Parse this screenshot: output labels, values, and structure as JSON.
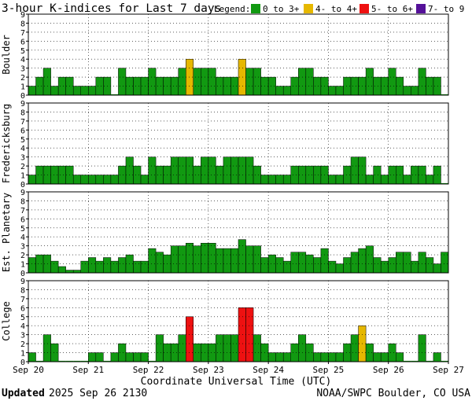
{
  "chart_data": {
    "type": "bar",
    "title": "3-hour K-indices for Last 7 days",
    "legend": {
      "label": "Legend:",
      "placement": "top-right",
      "items": [
        {
          "label": "0 to 3+",
          "color": "#119911"
        },
        {
          "label": "4- to 4+",
          "color": "#e6b800"
        },
        {
          "label": "5- to 6+",
          "color": "#ee1111"
        },
        {
          "label": "7- to 9",
          "color": "#551199"
        }
      ]
    },
    "ylim": [
      0,
      9
    ],
    "yticks": [
      "0",
      "1",
      "2",
      "3",
      "4",
      "5",
      "6",
      "7",
      "8",
      "9"
    ],
    "xlabel": "Coordinate Universal Time (UTC)",
    "xticks": [
      "Sep 20",
      "Sep 21",
      "Sep 22",
      "Sep 23",
      "Sep 24",
      "Sep 25",
      "Sep 26",
      "Sep 27"
    ],
    "interval_hours": 3,
    "grid": true,
    "panels": [
      {
        "name": "Boulder",
        "values": [
          1,
          2,
          3,
          1,
          2,
          2,
          1,
          1,
          1,
          2,
          2,
          0,
          3,
          2,
          2,
          2,
          3,
          2,
          2,
          2,
          3,
          4,
          3,
          3,
          3,
          2,
          2,
          2,
          4,
          3,
          3,
          2,
          2,
          1,
          1,
          2,
          3,
          3,
          2,
          2,
          1,
          1,
          2,
          2,
          2,
          3,
          2,
          2,
          3,
          2,
          1,
          1,
          3,
          2,
          2,
          0
        ]
      },
      {
        "name": "Fredericksburg",
        "values": [
          1,
          2,
          2,
          2,
          2,
          2,
          1,
          1,
          1,
          1,
          1,
          1,
          2,
          3,
          2,
          1,
          3,
          2,
          2,
          3,
          3,
          3,
          2,
          3,
          3,
          2,
          3,
          3,
          3,
          3,
          2,
          1,
          1,
          1,
          1,
          2,
          2,
          2,
          2,
          2,
          1,
          1,
          2,
          3,
          3,
          1,
          2,
          1,
          2,
          2,
          1,
          2,
          2,
          1,
          2,
          0
        ]
      },
      {
        "name": "Est. Planetary",
        "values": [
          1.7,
          2,
          2,
          1.3,
          0.7,
          0.3,
          0.3,
          1.3,
          1.7,
          1.3,
          1.7,
          1.3,
          1.7,
          2,
          1.3,
          1.3,
          2.7,
          2.3,
          2,
          3,
          3,
          3.3,
          3,
          3.3,
          3.3,
          2.7,
          2.7,
          2.7,
          3.7,
          3,
          3,
          1.7,
          2,
          1.7,
          1.3,
          2.3,
          2.3,
          2,
          1.7,
          2.7,
          1.3,
          1,
          1.7,
          2.3,
          2.7,
          3,
          1.7,
          1.3,
          1.7,
          2.3,
          2.3,
          1.3,
          2.3,
          1.7,
          1,
          2.3
        ]
      },
      {
        "name": "College",
        "values": [
          1,
          0,
          3,
          2,
          0,
          0,
          0,
          0,
          1,
          1,
          0,
          1,
          2,
          1,
          1,
          1,
          0,
          3,
          2,
          2,
          3,
          5,
          2,
          2,
          2,
          3,
          3,
          3,
          6,
          6,
          3,
          2,
          1,
          1,
          1,
          2,
          3,
          2,
          1,
          1,
          1,
          1,
          2,
          3,
          4,
          2,
          1,
          1,
          2,
          1,
          0,
          0,
          3,
          0,
          1,
          0
        ]
      }
    ]
  },
  "footer": {
    "updated_label": "Updated",
    "updated_time": "2025 Sep 26 2130",
    "credit": "NOAA/SWPC Boulder, CO USA"
  }
}
